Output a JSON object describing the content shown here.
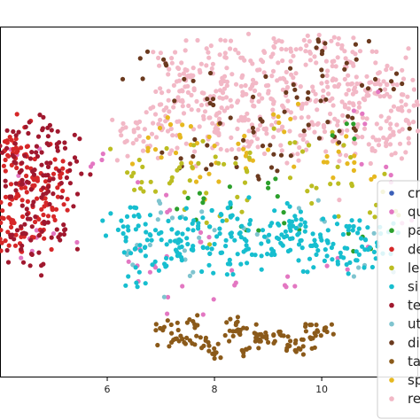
{
  "chart_data": {
    "type": "scatter",
    "x_ticks": [
      6,
      8,
      10
    ],
    "xlim": [
      4.0,
      11.8
    ],
    "ylim": [
      0.0,
      10.0
    ],
    "grid": false,
    "legend_location": "right",
    "series": [
      {
        "name": "cr",
        "color": "#3b5fb8",
        "points": []
      },
      {
        "name": "qu",
        "color": "#e377c2",
        "points": [
          [
            4.2,
            6.5
          ],
          [
            4.6,
            3.6
          ],
          [
            5.0,
            4.1
          ],
          [
            5.9,
            6.2
          ],
          [
            6.4,
            3.3
          ],
          [
            7.1,
            5.2
          ],
          [
            7.4,
            2.6
          ],
          [
            7.9,
            4.0
          ],
          [
            8.4,
            2.7
          ],
          [
            9.5,
            2.6
          ],
          [
            10.3,
            3.4
          ],
          [
            10.6,
            7.6
          ],
          [
            11.2,
            6.0
          ],
          [
            11.5,
            4.4
          ],
          [
            4.4,
            5.6
          ],
          [
            6.8,
            3.0
          ]
        ]
      },
      {
        "name": "pa",
        "color": "#2ca02c",
        "points": [
          [
            7.3,
            4.8
          ],
          [
            8.5,
            4.3
          ],
          [
            9.3,
            4.4
          ],
          [
            10.5,
            4.1
          ],
          [
            9.0,
            5.4
          ],
          [
            7.8,
            5.1
          ],
          [
            10.2,
            6.9
          ]
        ]
      },
      {
        "name": "de",
        "color": "#d62728",
        "points": [
          [
            4.1,
            6.2
          ],
          [
            4.4,
            5.4
          ],
          [
            4.8,
            5.1
          ],
          [
            4.2,
            4.5
          ],
          [
            4.6,
            4.0
          ],
          [
            5.0,
            5.8
          ],
          [
            4.3,
            6.8
          ],
          [
            4.0,
            5.0
          ],
          [
            4.9,
            4.6
          ],
          [
            4.5,
            6.3
          ],
          [
            4.7,
            5.6
          ],
          [
            4.1,
            3.9
          ]
        ]
      },
      {
        "name": "le",
        "color": "#bcbd22",
        "points": [
          [
            6.6,
            6.2
          ],
          [
            7.2,
            5.6
          ],
          [
            7.7,
            6.1
          ],
          [
            8.6,
            5.9
          ],
          [
            9.5,
            6.7
          ],
          [
            10.3,
            6.0
          ],
          [
            10.9,
            4.7
          ],
          [
            8.1,
            4.6
          ],
          [
            6.9,
            5.3
          ],
          [
            9.9,
            5.4
          ]
        ]
      },
      {
        "name": "si",
        "color": "#17becf",
        "points": [
          [
            6.5,
            4.6
          ],
          [
            6.9,
            4.2
          ],
          [
            7.3,
            4.1
          ],
          [
            7.7,
            4.4
          ],
          [
            8.1,
            4.1
          ],
          [
            8.5,
            4.0
          ],
          [
            8.9,
            4.2
          ],
          [
            9.3,
            4.0
          ],
          [
            9.7,
            4.3
          ],
          [
            10.1,
            3.9
          ],
          [
            10.5,
            4.2
          ],
          [
            10.9,
            3.7
          ],
          [
            6.7,
            3.7
          ],
          [
            7.5,
            3.8
          ],
          [
            8.3,
            4.6
          ],
          [
            9.1,
            3.6
          ],
          [
            9.9,
            3.5
          ],
          [
            7.1,
            3.4
          ],
          [
            8.7,
            3.5
          ],
          [
            10.3,
            3.3
          ],
          [
            6.6,
            3.0
          ],
          [
            7.9,
            3.2
          ],
          [
            9.5,
            4.6
          ],
          [
            11.1,
            4.1
          ],
          [
            6.3,
            4.3
          ],
          [
            8.0,
            3.8
          ],
          [
            9.6,
            3.9
          ],
          [
            10.7,
            3.5
          ]
        ]
      },
      {
        "name": "te",
        "color": "#a0182e",
        "points": [
          [
            4.3,
            6.9
          ],
          [
            4.7,
            6.3
          ],
          [
            4.1,
            5.6
          ],
          [
            4.9,
            5.3
          ],
          [
            4.5,
            4.8
          ],
          [
            4.2,
            4.0
          ],
          [
            5.1,
            6.7
          ],
          [
            4.6,
            3.5
          ],
          [
            4.8,
            7.1
          ],
          [
            5.3,
            5.9
          ],
          [
            4.4,
            5.9
          ],
          [
            5.2,
            4.2
          ],
          [
            4.0,
            6.6
          ],
          [
            4.9,
            6.0
          ],
          [
            4.6,
            4.3
          ]
        ]
      },
      {
        "name": "ut",
        "color": "#7fc4cf",
        "points": [
          [
            6.4,
            3.6
          ],
          [
            7.0,
            4.7
          ],
          [
            8.0,
            4.2
          ],
          [
            9.0,
            3.9
          ],
          [
            10.0,
            4.5
          ],
          [
            10.8,
            3.2
          ],
          [
            7.6,
            3.0
          ]
        ]
      },
      {
        "name": "di",
        "color": "#6b3a1f",
        "points": [
          [
            7.1,
            8.9
          ],
          [
            8.3,
            7.4
          ],
          [
            9.5,
            8.2
          ],
          [
            10.6,
            7.1
          ],
          [
            9.9,
            9.4
          ],
          [
            8.9,
            6.6
          ],
          [
            11.0,
            8.5
          ],
          [
            7.6,
            6.3
          ]
        ]
      },
      {
        "name": "ta",
        "color": "#8b5a1a",
        "points": [
          [
            7.0,
            1.4
          ],
          [
            7.4,
            1.1
          ],
          [
            7.8,
            0.9
          ],
          [
            8.2,
            1.2
          ],
          [
            8.6,
            0.8
          ],
          [
            9.0,
            1.0
          ],
          [
            9.4,
            0.9
          ],
          [
            9.8,
            1.1
          ],
          [
            10.1,
            1.3
          ],
          [
            7.6,
            1.6
          ],
          [
            8.4,
            1.5
          ],
          [
            9.2,
            1.3
          ],
          [
            8.0,
            0.7
          ],
          [
            8.8,
            1.1
          ],
          [
            9.6,
            0.8
          ],
          [
            7.2,
            1.0
          ],
          [
            8.6,
            1.4
          ],
          [
            9.9,
            1.5
          ]
        ]
      },
      {
        "name": "sp",
        "color": "#e6b820",
        "points": [
          [
            7.4,
            7.2
          ],
          [
            8.0,
            6.6
          ],
          [
            8.6,
            6.4
          ],
          [
            9.3,
            7.0
          ],
          [
            10.1,
            6.3
          ],
          [
            6.9,
            6.5
          ],
          [
            7.9,
            5.8
          ],
          [
            10.6,
            5.9
          ]
        ]
      },
      {
        "name": "re",
        "color": "#f2b8c6",
        "points": [
          [
            7.2,
            9.1
          ],
          [
            7.6,
            8.6
          ],
          [
            8.1,
            9.2
          ],
          [
            8.5,
            8.3
          ],
          [
            8.9,
            9.0
          ],
          [
            9.3,
            8.5
          ],
          [
            9.7,
            9.3
          ],
          [
            10.1,
            8.6
          ],
          [
            10.5,
            9.0
          ],
          [
            10.9,
            8.2
          ],
          [
            11.3,
            8.8
          ],
          [
            7.4,
            7.9
          ],
          [
            7.9,
            7.4
          ],
          [
            8.3,
            7.9
          ],
          [
            8.7,
            7.2
          ],
          [
            9.1,
            7.8
          ],
          [
            9.5,
            7.4
          ],
          [
            9.9,
            7.9
          ],
          [
            10.3,
            7.3
          ],
          [
            10.7,
            7.7
          ],
          [
            11.1,
            7.1
          ],
          [
            11.5,
            7.6
          ],
          [
            6.9,
            7.5
          ],
          [
            7.3,
            6.9
          ],
          [
            8.0,
            7.0
          ],
          [
            8.8,
            6.8
          ],
          [
            9.6,
            6.9
          ],
          [
            10.4,
            6.6
          ],
          [
            11.2,
            6.6
          ],
          [
            9.2,
            9.6
          ],
          [
            8.2,
            9.6
          ],
          [
            10.3,
            9.5
          ],
          [
            11.6,
            8.0
          ],
          [
            6.5,
            7.0
          ],
          [
            6.8,
            6.6
          ],
          [
            7.8,
            8.1
          ],
          [
            9.0,
            8.1
          ],
          [
            10.6,
            8.2
          ],
          [
            11.4,
            7.2
          ],
          [
            7.5,
            8.3
          ]
        ]
      }
    ]
  }
}
